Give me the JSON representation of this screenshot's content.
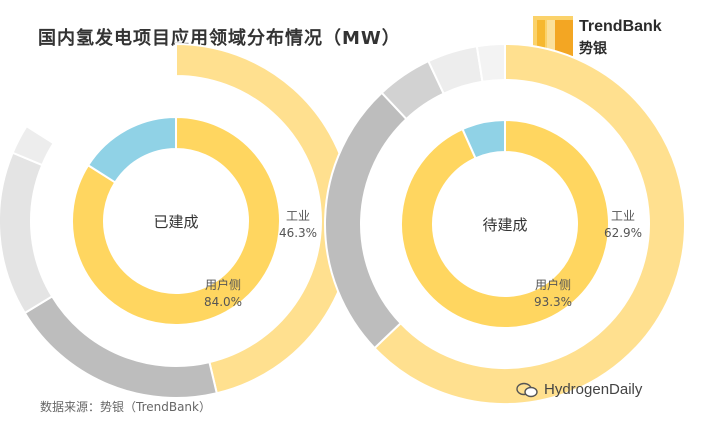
{
  "title": "国内氢发电项目应用领域分布情况（MW）",
  "logo": {
    "name_en": "TrendBank",
    "name_cn": "势银"
  },
  "source": "数据来源：势银（TrendBank）",
  "watermark": "HydrogenDaily",
  "colors": {
    "yellow_inner": "#FFD660",
    "yellow_outer": "#FFE08F",
    "blue": "#90D2E6",
    "gray_dark": "#BDBDBD",
    "gray_mid": "#D2D2D2",
    "gray_light": "#E4E4E4",
    "gray_faint": "#EDEDED",
    "gray_pale": "#F3F3F3"
  },
  "chart_data": [
    {
      "type": "pie",
      "center_label": "已建成",
      "inner": {
        "slices": [
          {
            "name": "用户侧",
            "pct": 84.0,
            "color": "yellow_inner"
          },
          {
            "name": "",
            "pct": 16.0,
            "color": "blue"
          }
        ]
      },
      "outer": {
        "slices": [
          {
            "name": "工业",
            "pct": 46.3,
            "color": "yellow_outer"
          },
          {
            "name": "",
            "pct": 20.0,
            "color": "gray_dark"
          },
          {
            "name": "",
            "pct": 15.0,
            "color": "gray_light"
          },
          {
            "name": "",
            "pct": 2.7,
            "color": "gray_faint"
          }
        ]
      },
      "labels": [
        {
          "name": "用户侧",
          "value": "84.0%"
        },
        {
          "name": "工业",
          "value": "46.3%"
        }
      ]
    },
    {
      "type": "pie",
      "center_label": "待建成",
      "inner": {
        "slices": [
          {
            "name": "用户侧",
            "pct": 93.3,
            "color": "yellow_inner"
          },
          {
            "name": "",
            "pct": 6.7,
            "color": "blue"
          }
        ]
      },
      "outer": {
        "slices": [
          {
            "name": "工业",
            "pct": 62.9,
            "color": "yellow_outer"
          },
          {
            "name": "",
            "pct": 25.1,
            "color": "gray_dark"
          },
          {
            "name": "",
            "pct": 5.0,
            "color": "gray_mid"
          },
          {
            "name": "",
            "pct": 4.5,
            "color": "gray_faint"
          },
          {
            "name": "",
            "pct": 2.5,
            "color": "gray_pale"
          }
        ]
      },
      "labels": [
        {
          "name": "用户侧",
          "value": "93.3%"
        },
        {
          "name": "工业",
          "value": "62.9%"
        }
      ]
    }
  ]
}
